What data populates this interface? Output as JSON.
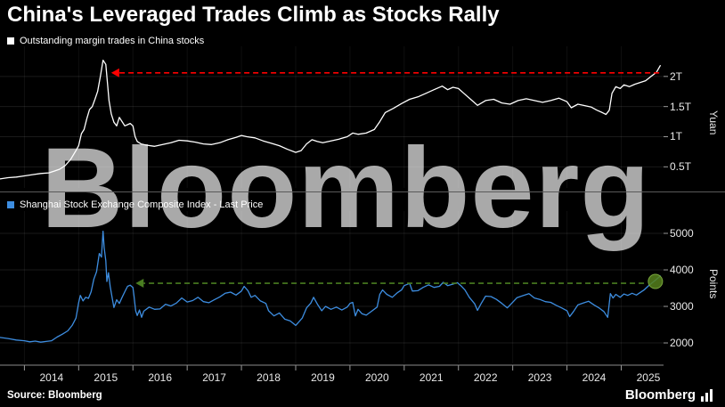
{
  "header": {
    "title": "China's Leveraged Trades Climb as Stocks Rally"
  },
  "watermark": {
    "text": "Bloomberg"
  },
  "footer": {
    "source_label": "Source: Bloomberg",
    "logo_text": "Bloomberg"
  },
  "x_axis": {
    "domain": [
      2013.55,
      2025.78
    ],
    "tick_years": [
      2014,
      2015,
      2016,
      2017,
      2018,
      2019,
      2020,
      2021,
      2022,
      2023,
      2024,
      2025
    ],
    "labels": [
      "2014",
      "2015",
      "2016",
      "2017",
      "2018",
      "2019",
      "2020",
      "2021",
      "2022",
      "2023",
      "2024",
      "2025"
    ]
  },
  "chart_data": [
    {
      "type": "line",
      "name": "outstanding-margin-trades",
      "legend": "Outstanding margin trades in China stocks",
      "line_color": "#ffffff",
      "ylabel": "Yuan",
      "ylim": [
        0.15,
        2.5
      ],
      "yticks": [
        {
          "v": 0.5,
          "label": "0.5T"
        },
        {
          "v": 1.0,
          "label": "1T"
        },
        {
          "v": 1.5,
          "label": "1.5T"
        },
        {
          "v": 2.0,
          "label": "2T"
        }
      ],
      "annotations": [
        {
          "type": "dashed-arrow",
          "color": "#ff0000",
          "value": 2.06,
          "from_year": 2025.7,
          "to_year": 2015.6
        }
      ],
      "points": [
        [
          2013.55,
          0.3
        ],
        [
          2013.7,
          0.32
        ],
        [
          2013.85,
          0.33
        ],
        [
          2014.0,
          0.35
        ],
        [
          2014.15,
          0.37
        ],
        [
          2014.3,
          0.39
        ],
        [
          2014.45,
          0.4
        ],
        [
          2014.55,
          0.43
        ],
        [
          2014.65,
          0.46
        ],
        [
          2014.75,
          0.52
        ],
        [
          2014.85,
          0.62
        ],
        [
          2014.95,
          0.77
        ],
        [
          2015.0,
          0.85
        ],
        [
          2015.05,
          1.05
        ],
        [
          2015.1,
          1.12
        ],
        [
          2015.15,
          1.3
        ],
        [
          2015.2,
          1.45
        ],
        [
          2015.25,
          1.5
        ],
        [
          2015.3,
          1.62
        ],
        [
          2015.35,
          1.75
        ],
        [
          2015.4,
          2.0
        ],
        [
          2015.45,
          2.27
        ],
        [
          2015.5,
          2.2
        ],
        [
          2015.53,
          1.9
        ],
        [
          2015.56,
          1.6
        ],
        [
          2015.6,
          1.38
        ],
        [
          2015.65,
          1.24
        ],
        [
          2015.7,
          1.18
        ],
        [
          2015.75,
          1.32
        ],
        [
          2015.8,
          1.25
        ],
        [
          2015.85,
          1.18
        ],
        [
          2015.9,
          1.2
        ],
        [
          2015.95,
          1.22
        ],
        [
          2016.0,
          1.18
        ],
        [
          2016.04,
          1.0
        ],
        [
          2016.08,
          0.92
        ],
        [
          2016.15,
          0.88
        ],
        [
          2016.25,
          0.86
        ],
        [
          2016.4,
          0.84
        ],
        [
          2016.55,
          0.87
        ],
        [
          2016.7,
          0.9
        ],
        [
          2016.85,
          0.94
        ],
        [
          2017.0,
          0.93
        ],
        [
          2017.15,
          0.91
        ],
        [
          2017.3,
          0.88
        ],
        [
          2017.45,
          0.87
        ],
        [
          2017.6,
          0.9
        ],
        [
          2017.75,
          0.95
        ],
        [
          2017.9,
          0.99
        ],
        [
          2018.0,
          1.02
        ],
        [
          2018.1,
          1.0
        ],
        [
          2018.25,
          0.98
        ],
        [
          2018.4,
          0.93
        ],
        [
          2018.55,
          0.89
        ],
        [
          2018.7,
          0.85
        ],
        [
          2018.85,
          0.79
        ],
        [
          2019.0,
          0.74
        ],
        [
          2019.1,
          0.77
        ],
        [
          2019.2,
          0.88
        ],
        [
          2019.3,
          0.95
        ],
        [
          2019.4,
          0.92
        ],
        [
          2019.5,
          0.9
        ],
        [
          2019.65,
          0.93
        ],
        [
          2019.8,
          0.96
        ],
        [
          2019.95,
          1.0
        ],
        [
          2020.05,
          1.06
        ],
        [
          2020.15,
          1.04
        ],
        [
          2020.3,
          1.06
        ],
        [
          2020.45,
          1.12
        ],
        [
          2020.55,
          1.25
        ],
        [
          2020.65,
          1.4
        ],
        [
          2020.8,
          1.47
        ],
        [
          2020.95,
          1.55
        ],
        [
          2021.1,
          1.62
        ],
        [
          2021.25,
          1.66
        ],
        [
          2021.4,
          1.72
        ],
        [
          2021.55,
          1.78
        ],
        [
          2021.7,
          1.84
        ],
        [
          2021.8,
          1.78
        ],
        [
          2021.9,
          1.82
        ],
        [
          2022.0,
          1.8
        ],
        [
          2022.1,
          1.72
        ],
        [
          2022.25,
          1.6
        ],
        [
          2022.35,
          1.52
        ],
        [
          2022.5,
          1.6
        ],
        [
          2022.65,
          1.62
        ],
        [
          2022.8,
          1.56
        ],
        [
          2022.95,
          1.54
        ],
        [
          2023.1,
          1.6
        ],
        [
          2023.25,
          1.63
        ],
        [
          2023.4,
          1.6
        ],
        [
          2023.55,
          1.57
        ],
        [
          2023.7,
          1.6
        ],
        [
          2023.85,
          1.64
        ],
        [
          2024.0,
          1.58
        ],
        [
          2024.08,
          1.48
        ],
        [
          2024.2,
          1.54
        ],
        [
          2024.3,
          1.52
        ],
        [
          2024.45,
          1.49
        ],
        [
          2024.55,
          1.44
        ],
        [
          2024.65,
          1.4
        ],
        [
          2024.72,
          1.37
        ],
        [
          2024.78,
          1.44
        ],
        [
          2024.83,
          1.72
        ],
        [
          2024.9,
          1.83
        ],
        [
          2024.98,
          1.8
        ],
        [
          2025.05,
          1.86
        ],
        [
          2025.15,
          1.83
        ],
        [
          2025.25,
          1.87
        ],
        [
          2025.35,
          1.9
        ],
        [
          2025.45,
          1.93
        ],
        [
          2025.55,
          2.0
        ],
        [
          2025.65,
          2.07
        ],
        [
          2025.72,
          2.18
        ]
      ]
    },
    {
      "type": "line",
      "name": "shanghai-composite-index",
      "legend": "Shanghai Stock Exchange Composite Index - Last Price",
      "line_color": "#3d8de0",
      "ylabel": "Points",
      "ylim": [
        1440,
        5610
      ],
      "yticks": [
        {
          "v": 2000,
          "label": "2000"
        },
        {
          "v": 3000,
          "label": "3000"
        },
        {
          "v": 4000,
          "label": "4000"
        },
        {
          "v": 5000,
          "label": "5000"
        }
      ],
      "annotations": [
        {
          "type": "dashed-arrow",
          "color": "#4a7d21",
          "value": 3634,
          "from_year": 2025.42,
          "to_year": 2016.05
        },
        {
          "type": "circle-marker",
          "year": 2025.63,
          "value": 3683,
          "r": 8,
          "color": "#55801c",
          "stroke": "#7aa83e"
        }
      ],
      "points": [
        [
          2013.55,
          2150
        ],
        [
          2013.7,
          2120
        ],
        [
          2013.85,
          2080
        ],
        [
          2014.0,
          2060
        ],
        [
          2014.1,
          2030
        ],
        [
          2014.2,
          2050
        ],
        [
          2014.3,
          2020
        ],
        [
          2014.4,
          2040
        ],
        [
          2014.5,
          2060
        ],
        [
          2014.6,
          2160
        ],
        [
          2014.7,
          2240
        ],
        [
          2014.8,
          2330
        ],
        [
          2014.88,
          2480
        ],
        [
          2014.95,
          2680
        ],
        [
          2015.0,
          3100
        ],
        [
          2015.03,
          3300
        ],
        [
          2015.08,
          3150
        ],
        [
          2015.13,
          3250
        ],
        [
          2015.18,
          3220
        ],
        [
          2015.23,
          3400
        ],
        [
          2015.28,
          3750
        ],
        [
          2015.33,
          3950
        ],
        [
          2015.38,
          4450
        ],
        [
          2015.42,
          4350
        ],
        [
          2015.45,
          5060
        ],
        [
          2015.47,
          4600
        ],
        [
          2015.5,
          4250
        ],
        [
          2015.52,
          3680
        ],
        [
          2015.55,
          3920
        ],
        [
          2015.58,
          3550
        ],
        [
          2015.62,
          3210
        ],
        [
          2015.65,
          2970
        ],
        [
          2015.7,
          3180
        ],
        [
          2015.75,
          3080
        ],
        [
          2015.8,
          3250
        ],
        [
          2015.85,
          3400
        ],
        [
          2015.9,
          3550
        ],
        [
          2015.95,
          3580
        ],
        [
          2016.0,
          3520
        ],
        [
          2016.02,
          3280
        ],
        [
          2016.05,
          2880
        ],
        [
          2016.08,
          2750
        ],
        [
          2016.12,
          2900
        ],
        [
          2016.16,
          2700
        ],
        [
          2016.2,
          2870
        ],
        [
          2016.3,
          2980
        ],
        [
          2016.4,
          2920
        ],
        [
          2016.5,
          2930
        ],
        [
          2016.6,
          3060
        ],
        [
          2016.7,
          3010
        ],
        [
          2016.8,
          3090
        ],
        [
          2016.9,
          3230
        ],
        [
          2017.0,
          3120
        ],
        [
          2017.1,
          3160
        ],
        [
          2017.2,
          3250
        ],
        [
          2017.3,
          3130
        ],
        [
          2017.4,
          3100
        ],
        [
          2017.5,
          3180
        ],
        [
          2017.6,
          3260
        ],
        [
          2017.7,
          3360
        ],
        [
          2017.8,
          3390
        ],
        [
          2017.9,
          3310
        ],
        [
          2018.0,
          3420
        ],
        [
          2018.05,
          3550
        ],
        [
          2018.12,
          3430
        ],
        [
          2018.18,
          3250
        ],
        [
          2018.25,
          3300
        ],
        [
          2018.35,
          3150
        ],
        [
          2018.45,
          3080
        ],
        [
          2018.5,
          2880
        ],
        [
          2018.6,
          2740
        ],
        [
          2018.7,
          2820
        ],
        [
          2018.8,
          2650
        ],
        [
          2018.9,
          2600
        ],
        [
          2019.0,
          2480
        ],
        [
          2019.05,
          2560
        ],
        [
          2019.12,
          2680
        ],
        [
          2019.2,
          2960
        ],
        [
          2019.28,
          3090
        ],
        [
          2019.33,
          3250
        ],
        [
          2019.4,
          3060
        ],
        [
          2019.48,
          2880
        ],
        [
          2019.55,
          3000
        ],
        [
          2019.65,
          2920
        ],
        [
          2019.75,
          2980
        ],
        [
          2019.85,
          2900
        ],
        [
          2019.95,
          2980
        ],
        [
          2020.0,
          3080
        ],
        [
          2020.05,
          3110
        ],
        [
          2020.1,
          2740
        ],
        [
          2020.15,
          2920
        ],
        [
          2020.22,
          2800
        ],
        [
          2020.3,
          2760
        ],
        [
          2020.4,
          2870
        ],
        [
          2020.5,
          2980
        ],
        [
          2020.55,
          3330
        ],
        [
          2020.6,
          3450
        ],
        [
          2020.68,
          3330
        ],
        [
          2020.78,
          3250
        ],
        [
          2020.88,
          3380
        ],
        [
          2020.95,
          3450
        ],
        [
          2021.0,
          3570
        ],
        [
          2021.1,
          3630
        ],
        [
          2021.15,
          3420
        ],
        [
          2021.25,
          3430
        ],
        [
          2021.35,
          3520
        ],
        [
          2021.45,
          3590
        ],
        [
          2021.55,
          3520
        ],
        [
          2021.65,
          3550
        ],
        [
          2021.72,
          3660
        ],
        [
          2021.8,
          3570
        ],
        [
          2021.9,
          3610
        ],
        [
          2021.98,
          3650
        ],
        [
          2022.05,
          3560
        ],
        [
          2022.12,
          3450
        ],
        [
          2022.2,
          3250
        ],
        [
          2022.3,
          3070
        ],
        [
          2022.35,
          2890
        ],
        [
          2022.42,
          3080
        ],
        [
          2022.5,
          3280
        ],
        [
          2022.6,
          3270
        ],
        [
          2022.7,
          3190
        ],
        [
          2022.8,
          3080
        ],
        [
          2022.9,
          2960
        ],
        [
          2022.98,
          3080
        ],
        [
          2023.08,
          3240
        ],
        [
          2023.18,
          3290
        ],
        [
          2023.3,
          3350
        ],
        [
          2023.4,
          3230
        ],
        [
          2023.5,
          3190
        ],
        [
          2023.6,
          3130
        ],
        [
          2023.7,
          3110
        ],
        [
          2023.8,
          3030
        ],
        [
          2023.9,
          2960
        ],
        [
          2024.0,
          2880
        ],
        [
          2024.05,
          2720
        ],
        [
          2024.12,
          2860
        ],
        [
          2024.2,
          3040
        ],
        [
          2024.3,
          3090
        ],
        [
          2024.4,
          3140
        ],
        [
          2024.5,
          3040
        ],
        [
          2024.6,
          2950
        ],
        [
          2024.68,
          2860
        ],
        [
          2024.75,
          2700
        ],
        [
          2024.8,
          3350
        ],
        [
          2024.85,
          3230
        ],
        [
          2024.9,
          3330
        ],
        [
          2024.98,
          3250
        ],
        [
          2025.05,
          3340
        ],
        [
          2025.12,
          3300
        ],
        [
          2025.2,
          3360
        ],
        [
          2025.28,
          3310
        ],
        [
          2025.35,
          3380
        ],
        [
          2025.42,
          3450
        ],
        [
          2025.5,
          3560
        ],
        [
          2025.6,
          3680
        ],
        [
          2025.72,
          3830
        ]
      ]
    }
  ]
}
